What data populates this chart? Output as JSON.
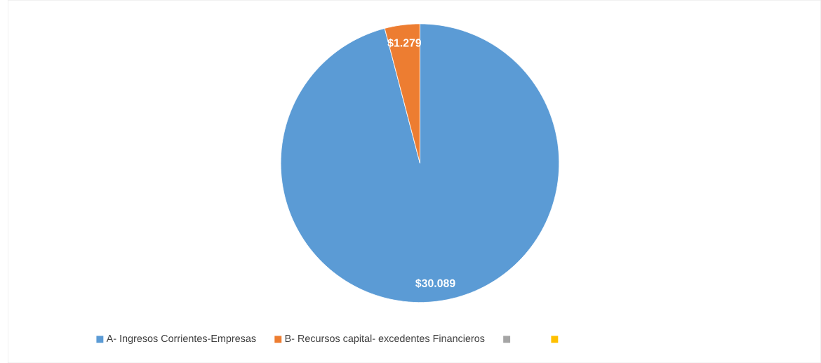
{
  "chart_data": {
    "type": "pie",
    "categories": [
      "A- Ingresos Corrientes-Empresas",
      "B- Recursos capital- excedentes Financieros",
      null,
      null
    ],
    "values": [
      30089,
      1279,
      0,
      0
    ],
    "colors": [
      "#5b9bd5",
      "#ed7d31",
      "#a5a5a5",
      "#ffc000"
    ],
    "value_labels": [
      "$30.089",
      "$1.279",
      null,
      null
    ],
    "legend": "bottom"
  }
}
